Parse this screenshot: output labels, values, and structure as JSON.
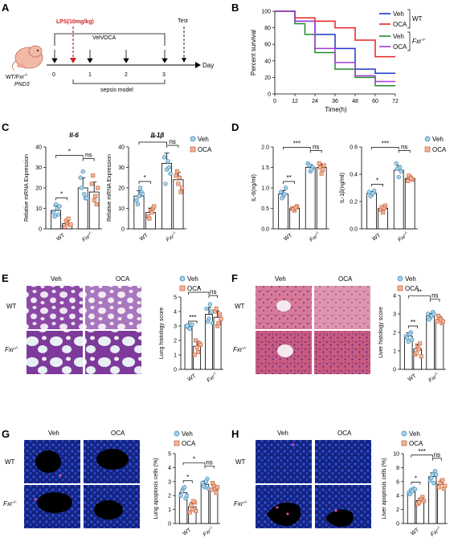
{
  "colors": {
    "veh": "#a9d1e6",
    "oca": "#f1b59b",
    "veh_edge": "#3b87b8",
    "oca_edge": "#c15c33",
    "veh_line": "#1f34c8",
    "oca_line": "#e82222",
    "veh_fxr_line": "#1f8a2a",
    "oca_fxr_line": "#a43bd4",
    "lps": "#cc1f1f",
    "he_purple": "#8c4aa7",
    "he_pink": "#d9698e",
    "apop_blue": "#1a3cb8"
  },
  "panels": {
    "A": {
      "letter": "A",
      "lps_label": "LPS(10mg/kg)",
      "treat_label": "Veh/OCA",
      "test_label": "Test",
      "day_label": "Day",
      "ticks": [
        "0",
        "1",
        "2",
        "3"
      ],
      "sepsis_label": "sepsis model",
      "mouse_label_1": "WT/Fxr",
      "mouse_label_1_sup": "-/-",
      "mouse_label_2": "PND3"
    },
    "B": {
      "letter": "B",
      "ylabel": "Percent survival",
      "xlabel": "Time(h)",
      "legend": [
        "Veh",
        "OCA",
        "Veh",
        "OCA"
      ],
      "group_wt": "WT",
      "group_fxr": "Fxr",
      "group_fxr_sup": "-/-"
    },
    "C": {
      "letter": "C"
    },
    "D": {
      "letter": "D"
    },
    "E": {
      "letter": "E",
      "col1": "Veh",
      "col2": "OCA",
      "row1": "WT",
      "row2": "Fxr",
      "row2_sup": "-/-"
    },
    "F": {
      "letter": "F",
      "col1": "Veh",
      "col2": "OCA",
      "row1": "WT",
      "row2": "Fxr",
      "row2_sup": "-/-"
    },
    "G": {
      "letter": "G",
      "col1": "Veh",
      "col2": "OCA",
      "row1": "WT",
      "row2": "Fxr",
      "row2_sup": "-/-"
    },
    "H": {
      "letter": "H",
      "col1": "Veh",
      "col2": "OCA",
      "row1": "WT",
      "row2": "Fxr",
      "row2_sup": "-/-"
    }
  },
  "legend": {
    "veh": "Veh",
    "oca": "OCA"
  },
  "group_labels": {
    "wt": "WT",
    "fxr": "Fxr",
    "fxr_sup": "-/-"
  },
  "chart_data": [
    {
      "id": "B",
      "type": "line",
      "xlabel": "Time(h)",
      "ylabel": "Percent survival",
      "xlim": [
        0,
        72
      ],
      "ylim": [
        0,
        100
      ],
      "xticks": [
        0,
        12,
        24,
        36,
        48,
        60,
        72
      ],
      "yticks": [
        0,
        20,
        40,
        60,
        80,
        100
      ],
      "series": [
        {
          "name": "Veh",
          "color": "#1f34c8",
          "points": [
            [
              0,
              100
            ],
            [
              12,
              100
            ],
            [
              12,
              88
            ],
            [
              24,
              88
            ],
            [
              24,
              72
            ],
            [
              36,
              72
            ],
            [
              36,
              55
            ],
            [
              48,
              55
            ],
            [
              48,
              30
            ],
            [
              60,
              30
            ],
            [
              60,
              25
            ],
            [
              72,
              25
            ]
          ]
        },
        {
          "name": "OCA",
          "color": "#e82222",
          "points": [
            [
              0,
              100
            ],
            [
              12,
              100
            ],
            [
              12,
              92
            ],
            [
              24,
              92
            ],
            [
              24,
              88
            ],
            [
              36,
              88
            ],
            [
              36,
              80
            ],
            [
              48,
              80
            ],
            [
              48,
              65
            ],
            [
              60,
              65
            ],
            [
              60,
              45
            ],
            [
              72,
              45
            ]
          ]
        },
        {
          "name": "Veh",
          "color": "#1f8a2a",
          "points": [
            [
              0,
              100
            ],
            [
              12,
              100
            ],
            [
              12,
              85
            ],
            [
              18,
              85
            ],
            [
              18,
              72
            ],
            [
              24,
              72
            ],
            [
              24,
              50
            ],
            [
              36,
              50
            ],
            [
              36,
              30
            ],
            [
              48,
              30
            ],
            [
              48,
              20
            ],
            [
              60,
              20
            ],
            [
              60,
              10
            ],
            [
              72,
              10
            ]
          ]
        },
        {
          "name": "OCA",
          "color": "#a43bd4",
          "points": [
            [
              0,
              100
            ],
            [
              12,
              100
            ],
            [
              12,
              88
            ],
            [
              24,
              88
            ],
            [
              24,
              55
            ],
            [
              36,
              55
            ],
            [
              36,
              38
            ],
            [
              48,
              38
            ],
            [
              48,
              22
            ],
            [
              60,
              22
            ],
            [
              60,
              15
            ],
            [
              72,
              15
            ]
          ]
        }
      ]
    },
    {
      "id": "C1",
      "type": "bar",
      "title": "Il-6",
      "ylabel": "Relative mRNA Expression",
      "ylim": [
        0,
        40
      ],
      "yticks": [
        0,
        10,
        20,
        30,
        40
      ],
      "categories": [
        "WT",
        "Fxr-/-"
      ],
      "series": [
        {
          "name": "Veh",
          "values": [
            9,
            20
          ]
        },
        {
          "name": "OCA",
          "values": [
            2.5,
            18
          ]
        }
      ],
      "points": [
        [
          8,
          12,
          7,
          6,
          10,
          11
        ],
        [
          1,
          3,
          2,
          4,
          5,
          2
        ],
        [
          25,
          28,
          15,
          20,
          17,
          15
        ],
        [
          22,
          14,
          12,
          26,
          16,
          20
        ]
      ],
      "sig": [
        {
          "label": "*",
          "span": "WT"
        },
        {
          "label": "*",
          "span": "Veh"
        },
        {
          "label": "ns",
          "span": "Fxr"
        }
      ]
    },
    {
      "id": "C2",
      "type": "bar",
      "title": "Il-1β",
      "ylabel": "Relative mRNA Expression",
      "ylim": [
        0,
        40
      ],
      "yticks": [
        0,
        10,
        20,
        30,
        40
      ],
      "categories": [
        "WT",
        "Fxr-/-"
      ],
      "series": [
        {
          "name": "Veh",
          "values": [
            16,
            32
          ]
        },
        {
          "name": "OCA",
          "values": [
            8,
            24
          ]
        }
      ],
      "points": [
        [
          14,
          16,
          18,
          12,
          20,
          17
        ],
        [
          6,
          9,
          10,
          5,
          8,
          11
        ],
        [
          35,
          29,
          30,
          22,
          33,
          27
        ],
        [
          26,
          22,
          18,
          28,
          25,
          20
        ]
      ],
      "sig": [
        {
          "label": "*",
          "span": "WT"
        },
        {
          "label": "**",
          "span": "Veh"
        },
        {
          "label": "ns",
          "span": "Fxr"
        }
      ]
    },
    {
      "id": "D1",
      "type": "bar",
      "ylabel": "IL-6(ng/ml)",
      "ylim": [
        0,
        2.0
      ],
      "yticks": [
        0,
        0.5,
        1.0,
        1.5,
        2.0
      ],
      "ytick_labels": [
        "0.0",
        "0.5",
        "1.0",
        "1.5",
        "2.0"
      ],
      "categories": [
        "WT",
        "Fxr-/-"
      ],
      "series": [
        {
          "name": "Veh",
          "values": [
            0.85,
            1.5
          ]
        },
        {
          "name": "OCA",
          "values": [
            0.5,
            1.5
          ]
        }
      ],
      "points": [
        [
          0.9,
          0.8,
          1.0,
          0.75,
          0.85
        ],
        [
          0.5,
          0.45,
          0.55,
          0.48,
          0.52
        ],
        [
          1.6,
          1.4,
          1.5,
          1.55,
          1.45
        ],
        [
          1.6,
          1.35,
          1.55,
          1.5,
          1.45
        ]
      ],
      "sig": [
        {
          "label": "**",
          "span": "WT"
        },
        {
          "label": "***",
          "span": "Veh"
        },
        {
          "label": "ns",
          "span": "Fxr"
        }
      ]
    },
    {
      "id": "D2",
      "type": "bar",
      "ylabel": "IL-1β(ng/ml)",
      "ylim": [
        0,
        0.6
      ],
      "yticks": [
        0,
        0.2,
        0.4,
        0.6
      ],
      "ytick_labels": [
        "0.0",
        "0.2",
        "0.4",
        "0.6"
      ],
      "categories": [
        "WT",
        "Fxr-/-"
      ],
      "series": [
        {
          "name": "Veh",
          "values": [
            0.26,
            0.43
          ]
        },
        {
          "name": "OCA",
          "values": [
            0.15,
            0.37
          ]
        }
      ],
      "points": [
        [
          0.27,
          0.25,
          0.28,
          0.24,
          0.26
        ],
        [
          0.14,
          0.12,
          0.17,
          0.16,
          0.15
        ],
        [
          0.48,
          0.38,
          0.42,
          0.44,
          0.45
        ],
        [
          0.35,
          0.38,
          0.36,
          0.39,
          0.37
        ]
      ],
      "sig": [
        {
          "label": "*",
          "span": "WT"
        },
        {
          "label": "***",
          "span": "Veh"
        },
        {
          "label": "ns",
          "span": "Fxr"
        }
      ]
    },
    {
      "id": "E",
      "type": "bar",
      "ylabel": "Lung histology score",
      "ylim": [
        0,
        5
      ],
      "yticks": [
        0,
        1,
        2,
        3,
        4,
        5
      ],
      "categories": [
        "WT",
        "Fxr-/-"
      ],
      "series": [
        {
          "name": "Veh",
          "values": [
            3.0,
            3.8
          ]
        },
        {
          "name": "OCA",
          "values": [
            1.6,
            3.6
          ]
        }
      ],
      "points": [
        [
          3.0,
          2.9,
          3.1,
          3.0,
          2.8,
          3.1
        ],
        [
          1.0,
          1.5,
          1.8,
          2.0,
          1.2,
          1.7
        ],
        [
          4.2,
          3.5,
          4.0,
          3.3,
          4.5,
          3.2
        ],
        [
          4.0,
          3.0,
          3.8,
          4.2,
          3.2,
          3.5
        ]
      ],
      "sig": [
        {
          "label": "***",
          "span": "WT"
        },
        {
          "label": "*",
          "span": "Veh"
        },
        {
          "label": "ns",
          "span": "Fxr"
        }
      ]
    },
    {
      "id": "F",
      "type": "bar",
      "ylabel": "Liver histology score",
      "ylim": [
        0,
        4
      ],
      "yticks": [
        0,
        1,
        2,
        3,
        4
      ],
      "categories": [
        "WT",
        "Fxr-/-"
      ],
      "series": [
        {
          "name": "Veh",
          "values": [
            1.8,
            2.9
          ]
        },
        {
          "name": "OCA",
          "values": [
            1.1,
            2.7
          ]
        }
      ],
      "points": [
        [
          1.8,
          1.5,
          2.0,
          1.7,
          1.9,
          1.6
        ],
        [
          0.8,
          1.2,
          1.4,
          0.9,
          1.1,
          0.7
        ],
        [
          3.0,
          2.8,
          3.1,
          2.7,
          2.9,
          3.0
        ],
        [
          2.6,
          2.8,
          2.5,
          2.9,
          2.7,
          2.6
        ]
      ],
      "sig": [
        {
          "label": "**",
          "span": "WT"
        },
        {
          "label": "**",
          "span": "Veh"
        },
        {
          "label": "ns",
          "span": "Fxr"
        }
      ]
    },
    {
      "id": "G",
      "type": "bar",
      "ylabel": "Lung apoptosis cells (%)",
      "ylim": [
        0,
        5
      ],
      "yticks": [
        0,
        1,
        2,
        3,
        4,
        5
      ],
      "categories": [
        "WT",
        "Fxr-/-"
      ],
      "series": [
        {
          "name": "Veh",
          "values": [
            2.2,
            2.8
          ]
        },
        {
          "name": "OCA",
          "values": [
            1.2,
            2.5
          ]
        }
      ],
      "points": [
        [
          2.0,
          2.5,
          1.8,
          2.3,
          2.6,
          2.0
        ],
        [
          0.8,
          1.0,
          1.5,
          1.3,
          1.6,
          0.9
        ],
        [
          2.9,
          2.6,
          3.2,
          2.7,
          3.0,
          2.5
        ],
        [
          2.4,
          2.7,
          2.2,
          2.9,
          2.5,
          2.6
        ]
      ],
      "sig": [
        {
          "label": "*",
          "span": "WT"
        },
        {
          "label": "*",
          "span": "Veh"
        },
        {
          "label": "ns",
          "span": "Fxr"
        }
      ]
    },
    {
      "id": "H",
      "type": "bar",
      "ylabel": "Liver apoptosis cells (%)",
      "ylim": [
        0,
        10
      ],
      "yticks": [
        0,
        2,
        4,
        6,
        8,
        10
      ],
      "categories": [
        "WT",
        "Fxr-/-"
      ],
      "series": [
        {
          "name": "Veh",
          "values": [
            4.6,
            6.7
          ]
        },
        {
          "name": "OCA",
          "values": [
            3.3,
            5.6
          ]
        }
      ],
      "points": [
        [
          4.4,
          4.8,
          5.0,
          4.2,
          4.6,
          4.9
        ],
        [
          2.8,
          3.4,
          3.8,
          3.0,
          3.5,
          3.2
        ],
        [
          6.2,
          7.0,
          7.5,
          6.5,
          5.8,
          7.0
        ],
        [
          5.2,
          6.0,
          5.0,
          5.8,
          6.2,
          5.4
        ]
      ],
      "sig": [
        {
          "label": "*",
          "span": "WT"
        },
        {
          "label": "***",
          "span": "Veh"
        },
        {
          "label": "ns",
          "span": "Fxr"
        }
      ]
    }
  ]
}
